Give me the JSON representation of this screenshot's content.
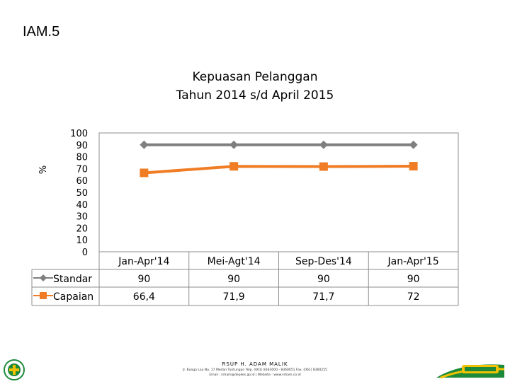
{
  "slide": {
    "title": "IAM.5"
  },
  "chart_data": {
    "type": "line",
    "title": "Kepuasan Pelanggan",
    "subtitle": "Tahun 2014 s/d April 2015",
    "ylabel": "%",
    "xlabel": "",
    "ylim": [
      0,
      100
    ],
    "yticks": [
      "100",
      "90",
      "80",
      "70",
      "60",
      "50",
      "40",
      "30",
      "20",
      "10",
      "0"
    ],
    "categories": [
      "Jan-Apr'14",
      "Mei-Agt'14",
      "Sep-Des'14",
      "Jan-Apr'15"
    ],
    "series": [
      {
        "name": "Standar",
        "values": [
          90,
          90,
          90,
          90
        ],
        "display": [
          "90",
          "90",
          "90",
          "90"
        ],
        "color": "#7f7f7f",
        "marker": "diamond"
      },
      {
        "name": "Capaian",
        "values": [
          66.4,
          71.9,
          71.7,
          72
        ],
        "display": [
          "66,4",
          "71,9",
          "71,7",
          "72"
        ],
        "color": "#f07d25",
        "marker": "square"
      }
    ],
    "grid": false,
    "legend": "data-table"
  },
  "footer": {
    "name": "RSUP H. ADAM MALIK",
    "address": "Jl. Bunga Lau No. 17 Medan Tuntungan Telp. (061) 8363000 - 8360051 Fax. (061) 8360255",
    "web": "Email : rsham@depkes.go.id | Website : www.rsham.co.id"
  },
  "colors": {
    "axis": "#8c8c8c",
    "standar": "#7f7f7f",
    "capaian": "#f07d25",
    "green": "#1d8a3a"
  }
}
